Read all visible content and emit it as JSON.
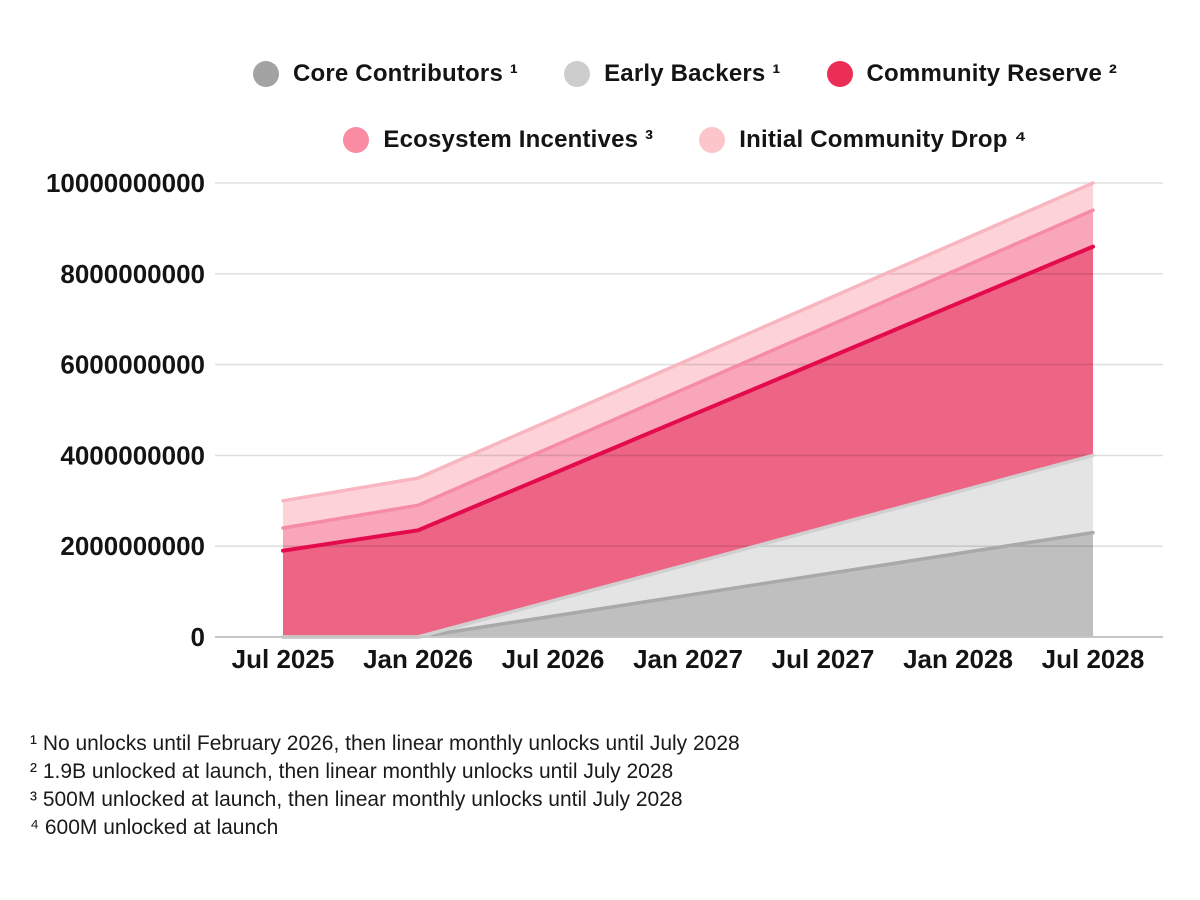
{
  "page": {
    "background": "#ffffff",
    "text_color": "#141414"
  },
  "legend": {
    "rows": [
      [
        "core_contributors",
        "early_backers",
        "community_reserve"
      ],
      [
        "ecosystem_incentives",
        "initial_community_drop"
      ]
    ]
  },
  "chart_data": {
    "type": "area",
    "stacked": true,
    "title": "",
    "xlabel": "",
    "ylabel": "",
    "grid": true,
    "legend_position": "top",
    "categories": [
      "Jul 2025",
      "Jan 2026",
      "Jul 2026",
      "Jan 2027",
      "Jul 2027",
      "Jan 2028",
      "Jul 2028"
    ],
    "ylim": [
      0,
      10000000000
    ],
    "ytick_step": 2000000000,
    "ytick_labels": [
      "0",
      "2000000000",
      "4000000000",
      "6000000000",
      "8000000000",
      "10000000000"
    ],
    "total_at_end": 10000000000,
    "series": [
      {
        "id": "core_contributors",
        "name": "Core Contributors",
        "sup": "¹",
        "values": [
          0,
          0,
          460000000,
          920000000,
          1380000000,
          1840000000,
          2300000000
        ],
        "fill": "#bfbfbf",
        "stroke": "#a9a9a9",
        "legend_color": "#a3a3a3"
      },
      {
        "id": "early_backers",
        "name": "Early Backers",
        "sup": "¹",
        "values": [
          0,
          0,
          340000000,
          680000000,
          1020000000,
          1360000000,
          1700000000
        ],
        "fill": "#e4e4e4",
        "stroke": "#d0d0d0",
        "legend_color": "#cdcdcd"
      },
      {
        "id": "community_reserve",
        "name": "Community Reserve",
        "sup": "²",
        "values": [
          1900000000,
          2350000000,
          2800000000,
          3250000000,
          3700000000,
          4150000000,
          4600000000
        ],
        "fill": "#ed6485",
        "stroke": "#e30b4c",
        "legend_color": "#ea2e56"
      },
      {
        "id": "ecosystem_incentives",
        "name": "Ecosystem Incentives",
        "sup": "³",
        "values": [
          500000000,
          550000000,
          600000000,
          650000000,
          700000000,
          750000000,
          800000000
        ],
        "fill": "#f9a6ba",
        "stroke": "#f68ba6",
        "legend_color": "#f98ba3"
      },
      {
        "id": "initial_community_drop",
        "name": "Initial Community Drop",
        "sup": "⁴",
        "values": [
          600000000,
          600000000,
          600000000,
          600000000,
          600000000,
          600000000,
          600000000
        ],
        "fill": "#fdd3d8",
        "stroke": "#f8b7c0",
        "legend_color": "#fbc5c9"
      }
    ]
  },
  "footnotes": [
    "¹ No unlocks until February 2026, then linear monthly unlocks until July 2028",
    "² 1.9B unlocked at launch, then linear monthly unlocks until July 2028",
    "³ 500M unlocked at launch, then linear monthly unlocks until July 2028",
    "⁴ 600M unlocked at launch"
  ]
}
